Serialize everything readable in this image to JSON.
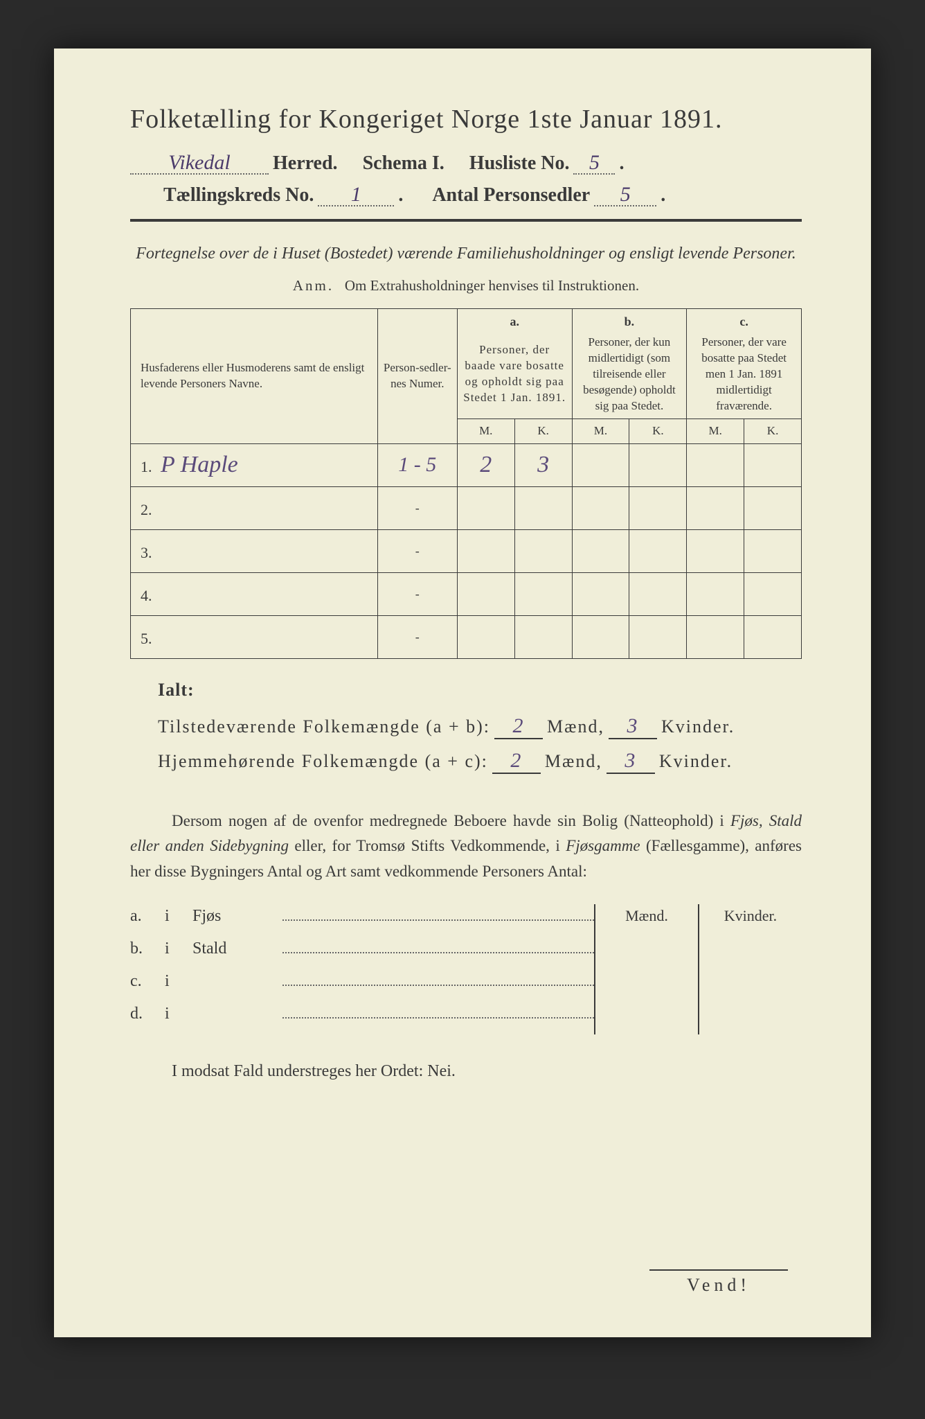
{
  "title": "Folketælling for Kongeriget Norge 1ste Januar 1891.",
  "header": {
    "herred_value": "Vikedal",
    "herred_label": "Herred.",
    "schema_label": "Schema I.",
    "husliste_label": "Husliste No.",
    "husliste_value": "5",
    "kreds_label": "Tællingskreds No.",
    "kreds_value": "1",
    "antal_label": "Antal Personsedler",
    "antal_value": "5"
  },
  "subtitle": "Fortegnelse over de i Huset (Bostedet) værende Familiehusholdninger og ensligt levende Personer.",
  "anm_label": "Anm.",
  "anm_text": "Om Extrahusholdninger henvises til Instruktionen.",
  "table": {
    "col_name": "Husfaderens eller Husmoderens samt de ensligt levende Personers Navne.",
    "col_num": "Person-sedler-nes Numer.",
    "col_a_letter": "a.",
    "col_a": "Personer, der baade vare bosatte og opholdt sig paa Stedet 1 Jan. 1891.",
    "col_b_letter": "b.",
    "col_b": "Personer, der kun midlertidigt (som tilreisende eller besøgende) opholdt sig paa Stedet.",
    "col_c_letter": "c.",
    "col_c": "Personer, der vare bosatte paa Stedet men 1 Jan. 1891 midlertidigt fraværende.",
    "m": "M.",
    "k": "K.",
    "rows": [
      {
        "n": "1.",
        "name": "P Haple",
        "num": "1 - 5",
        "a_m": "2",
        "a_k": "3",
        "b_m": "",
        "b_k": "",
        "c_m": "",
        "c_k": ""
      },
      {
        "n": "2.",
        "name": "",
        "num": "-",
        "a_m": "",
        "a_k": "",
        "b_m": "",
        "b_k": "",
        "c_m": "",
        "c_k": ""
      },
      {
        "n": "3.",
        "name": "",
        "num": "-",
        "a_m": "",
        "a_k": "",
        "b_m": "",
        "b_k": "",
        "c_m": "",
        "c_k": ""
      },
      {
        "n": "4.",
        "name": "",
        "num": "-",
        "a_m": "",
        "a_k": "",
        "b_m": "",
        "b_k": "",
        "c_m": "",
        "c_k": ""
      },
      {
        "n": "5.",
        "name": "",
        "num": "-",
        "a_m": "",
        "a_k": "",
        "b_m": "",
        "b_k": "",
        "c_m": "",
        "c_k": ""
      }
    ]
  },
  "totals": {
    "ialt": "Ialt:",
    "present_label": "Tilstedeværende Folkemængde (a + b):",
    "resident_label": "Hjemmehørende Folkemængde (a + c):",
    "maend": "Mænd,",
    "kvinder": "Kvinder.",
    "present_m": "2",
    "present_k": "3",
    "resident_m": "2",
    "resident_k": "3"
  },
  "paragraph": {
    "t1": "Dersom nogen af de ovenfor medregnede Beboere havde sin Bolig (Natteophold) i ",
    "i1": "Fjøs, Stald eller anden Sidebygning",
    "t2": " eller, for Tromsø Stifts Vedkommende, i ",
    "i2": "Fjøsgamme",
    "t3": " (Fællesgamme), anføres her disse Bygningers Antal og Art samt vedkommende Personers Antal:"
  },
  "buildings": {
    "maend": "Mænd.",
    "kvinder": "Kvinder.",
    "rows": [
      {
        "l": "a.",
        "i": "i",
        "t": "Fjøs"
      },
      {
        "l": "b.",
        "i": "i",
        "t": "Stald"
      },
      {
        "l": "c.",
        "i": "i",
        "t": ""
      },
      {
        "l": "d.",
        "i": "i",
        "t": ""
      }
    ]
  },
  "neg": "I modsat Fald understreges her Ordet: Nei.",
  "vend": "Vend!"
}
